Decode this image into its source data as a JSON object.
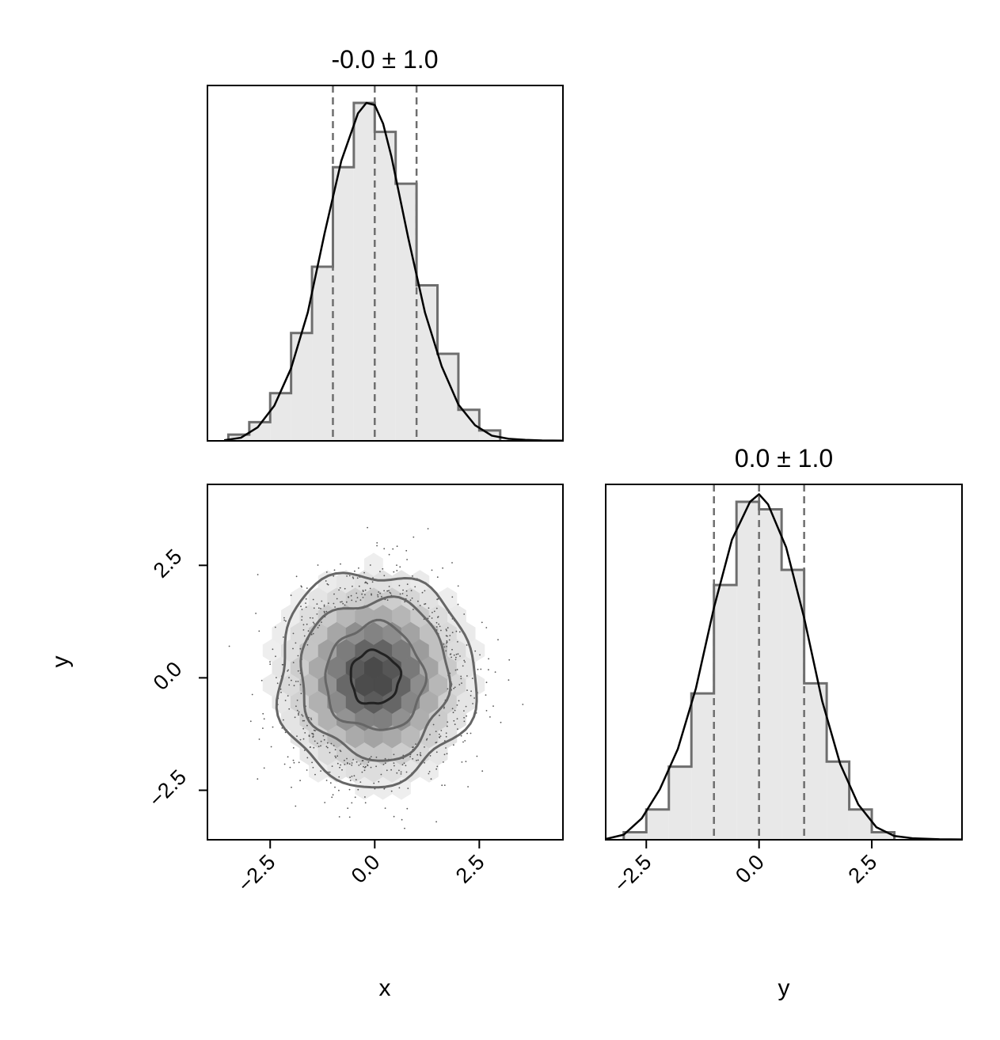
{
  "chart_data": {
    "type": "corner",
    "colors": {
      "hist_fill": "#e8e8e8",
      "hist_step": "#6e6e6e",
      "kde_line": "#000000",
      "quantile_line": "#6e6e6e",
      "contour_line": "#666666",
      "scatter_point": "#555555"
    },
    "panels": [
      {
        "id": "hist-x",
        "type": "histogram",
        "title": "-0.0 ± 1.0",
        "variable": "x",
        "xlim": [
          -4.0,
          4.5
        ],
        "bin_edges": [
          -3.5,
          -3.0,
          -2.5,
          -2.0,
          -1.5,
          -1.0,
          -0.5,
          0.0,
          0.5,
          1.0,
          1.5,
          2.0,
          2.5,
          3.0
        ],
        "counts": [
          3,
          9,
          23,
          52,
          84,
          132,
          163,
          149,
          124,
          75,
          42,
          15,
          5
        ],
        "kde": {
          "x": [
            -3.6,
            -3.2,
            -2.8,
            -2.4,
            -2.0,
            -1.6,
            -1.2,
            -0.8,
            -0.4,
            -0.2,
            0.0,
            0.2,
            0.4,
            0.8,
            1.2,
            1.6,
            2.0,
            2.4,
            2.8,
            3.2,
            3.6,
            4.0,
            4.5
          ],
          "y": [
            0.3,
            1.5,
            6.5,
            17.0,
            35.0,
            62.0,
            100.0,
            135.0,
            158.0,
            163.0,
            162.0,
            153.0,
            137.0,
            98.0,
            62.0,
            36.0,
            17.5,
            7.5,
            2.5,
            1.0,
            0.5,
            0.2,
            0.1
          ]
        },
        "quantiles": [
          -1.0,
          0.0,
          1.0
        ]
      },
      {
        "id": "joint-xy",
        "type": "hexbin-contour",
        "xlim": [
          -4.0,
          4.5
        ],
        "ylim": [
          -3.6,
          4.3
        ],
        "xlabel": "x",
        "ylabel": "y",
        "xticks": [
          -2.5,
          0.0,
          2.5
        ],
        "yticks": [
          -2.5,
          0.0,
          2.5
        ],
        "xtick_labels": [
          "−2.5",
          "0.0",
          "2.5"
        ],
        "ytick_labels": [
          "−2.5",
          "0.0",
          "2.5"
        ],
        "density_center": [
          0.0,
          0.0
        ],
        "density_sigma": 1.0,
        "contour_levels_sigma": [
          0.5,
          1.0,
          1.5,
          2.0
        ]
      },
      {
        "id": "hist-y",
        "type": "histogram",
        "title": "0.0 ± 1.0",
        "variable": "y",
        "xlabel": "y",
        "xlim": [
          -3.4,
          4.5
        ],
        "xticks": [
          -2.5,
          0.0,
          2.5
        ],
        "xtick_labels": [
          "−2.5",
          "0.0",
          "2.5"
        ],
        "bin_edges": [
          -3.0,
          -2.5,
          -2.0,
          -1.5,
          -1.0,
          -0.5,
          0.0,
          0.5,
          1.0,
          1.5,
          2.0,
          2.5,
          3.0
        ],
        "counts": [
          3,
          12,
          29,
          58,
          101,
          134,
          131,
          107,
          62,
          31,
          12,
          3
        ],
        "kde": {
          "x": [
            -3.4,
            -3.0,
            -2.6,
            -2.2,
            -1.8,
            -1.4,
            -1.0,
            -0.6,
            -0.2,
            0.0,
            0.2,
            0.6,
            1.0,
            1.4,
            1.8,
            2.2,
            2.6,
            3.0,
            3.4,
            4.0,
            4.5
          ],
          "y": [
            0.3,
            2.0,
            8.5,
            20.0,
            36.0,
            60.0,
            92.0,
            119.0,
            134.0,
            137.0,
            133.0,
            116.0,
            88.0,
            55.0,
            30.0,
            14.0,
            5.0,
            1.5,
            0.6,
            0.2,
            0.1
          ]
        },
        "quantiles": [
          -1.0,
          0.0,
          1.0
        ]
      }
    ]
  }
}
